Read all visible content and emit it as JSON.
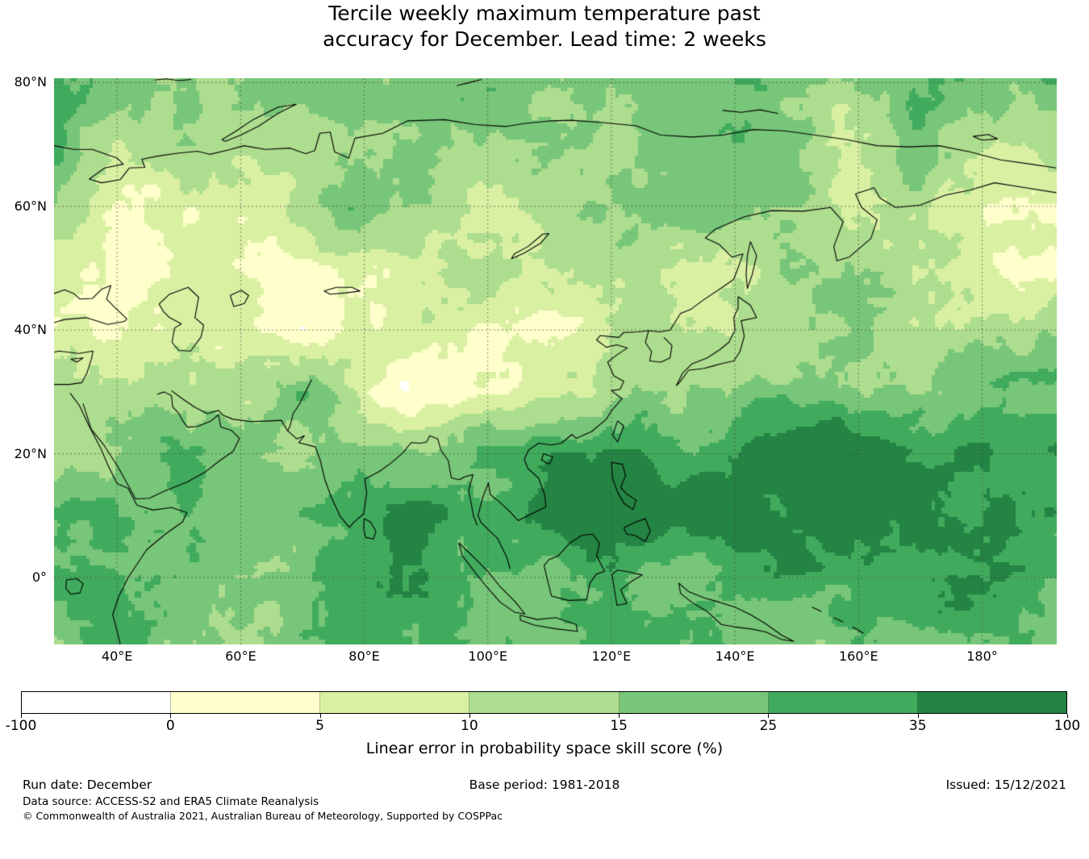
{
  "title": {
    "line1": "Tercile weekly maximum temperature past",
    "line2": "accuracy for December. Lead time: 2 weeks"
  },
  "map": {
    "y_axis_labels": [
      "80°N",
      "60°N",
      "40°N",
      "20°N",
      "0°"
    ],
    "x_axis_labels": [
      "40°E",
      "60°E",
      "80°E",
      "100°E",
      "120°E",
      "140°E",
      "160°E",
      "180°"
    ]
  },
  "colorbar": {
    "label": "Linear error in probability space skill score (%)",
    "tick_labels": [
      "-100",
      "0",
      "5",
      "10",
      "15",
      "25",
      "35",
      "100"
    ],
    "segment_colors": [
      "#ffffff",
      "#ffffcc",
      "#d9f0a3",
      "#addd8e",
      "#78c679",
      "#41ab5d",
      "#238443"
    ]
  },
  "footer": {
    "run_date": "Run date: December",
    "base_period": "Base period: 1981-2018",
    "issued": "Issued: 15/12/2021",
    "data_source": "Data source: ACCESS-S2 and ERA5 Climate Reanalysis",
    "copyright": "© Commonwealth of Australia 2021, Australian Bureau of Meteorology, Supported by COSPPac"
  },
  "chart_data": {
    "type": "heatmap",
    "title": "Tercile weekly maximum temperature past accuracy for December. Lead time: 2 weeks",
    "colorbar_label": "Linear error in probability space skill score (%)",
    "colorbar_ticks": [
      -100,
      0,
      5,
      10,
      15,
      25,
      35,
      100
    ],
    "colorbar_colors": [
      "#ffffff",
      "#ffffcc",
      "#d9f0a3",
      "#addd8e",
      "#78c679",
      "#41ab5d",
      "#238443"
    ],
    "level_bins": [
      "-100–0",
      "0–5",
      "5–10",
      "10–15",
      "15–25",
      "25–35",
      "35–100"
    ],
    "projection": "PlateCarree",
    "grid": true,
    "extent": {
      "lon_min": 29.8,
      "lon_max": 192,
      "lat_min": -10.8,
      "lat_max": 80.7
    },
    "x_tick_lons": [
      40,
      60,
      80,
      100,
      120,
      140,
      160,
      180
    ],
    "y_tick_lats": [
      80,
      60,
      40,
      20,
      0
    ],
    "grid_lat_rows": [
      80,
      70,
      60,
      50,
      40,
      30,
      20,
      10,
      0,
      -10
    ],
    "grid_lon_cols": [
      30,
      40,
      50,
      60,
      70,
      80,
      90,
      100,
      110,
      120,
      130,
      140,
      150,
      160,
      170,
      180,
      190
    ],
    "level_index_grid": [
      [
        4.5,
        4.0,
        4.0,
        3.5,
        3.5,
        4.0,
        4.5,
        4.0,
        3.5,
        4.0,
        4.5,
        4.0,
        3.5,
        3.5,
        4.0,
        4.0,
        4.5
      ],
      [
        4.0,
        3.0,
        3.5,
        3.0,
        3.0,
        3.5,
        4.0,
        3.5,
        3.0,
        3.5,
        4.5,
        4.0,
        3.5,
        3.0,
        3.5,
        3.0,
        2.5
      ],
      [
        2.5,
        2.0,
        2.0,
        2.5,
        3.0,
        3.5,
        3.5,
        3.0,
        3.5,
        3.5,
        4.0,
        3.5,
        4.0,
        3.0,
        2.5,
        1.5,
        1.0
      ],
      [
        2.0,
        1.5,
        2.0,
        2.0,
        1.5,
        1.5,
        2.0,
        2.5,
        3.0,
        2.5,
        2.0,
        3.0,
        3.5,
        3.5,
        3.0,
        2.0,
        0.8
      ],
      [
        1.5,
        2.0,
        2.5,
        2.0,
        1.0,
        1.5,
        2.0,
        1.0,
        1.5,
        2.0,
        2.5,
        3.0,
        3.5,
        3.5,
        3.0,
        3.0,
        3.0
      ],
      [
        3.0,
        3.5,
        3.0,
        3.0,
        4.5,
        1.5,
        1.0,
        1.5,
        2.0,
        2.5,
        3.5,
        4.0,
        4.0,
        3.5,
        4.0,
        4.0,
        4.0
      ],
      [
        3.5,
        4.0,
        5.0,
        4.0,
        3.5,
        4.5,
        4.0,
        4.5,
        5.0,
        5.0,
        4.5,
        5.5,
        6.0,
        6.0,
        6.0,
        6.0,
        5.5
      ],
      [
        4.0,
        4.5,
        4.0,
        4.0,
        4.5,
        5.0,
        5.5,
        5.5,
        6.0,
        6.0,
        5.5,
        6.0,
        6.0,
        6.0,
        6.0,
        6.0,
        6.0
      ],
      [
        4.5,
        5.0,
        4.5,
        4.0,
        4.5,
        5.0,
        5.0,
        4.5,
        4.0,
        5.5,
        4.0,
        5.0,
        5.5,
        5.0,
        5.0,
        5.0,
        5.0
      ],
      [
        4.0,
        4.5,
        4.0,
        4.0,
        4.5,
        4.5,
        4.5,
        4.0,
        4.5,
        5.0,
        4.5,
        3.5,
        3.0,
        4.0,
        4.5,
        4.5,
        4.5
      ]
    ]
  }
}
